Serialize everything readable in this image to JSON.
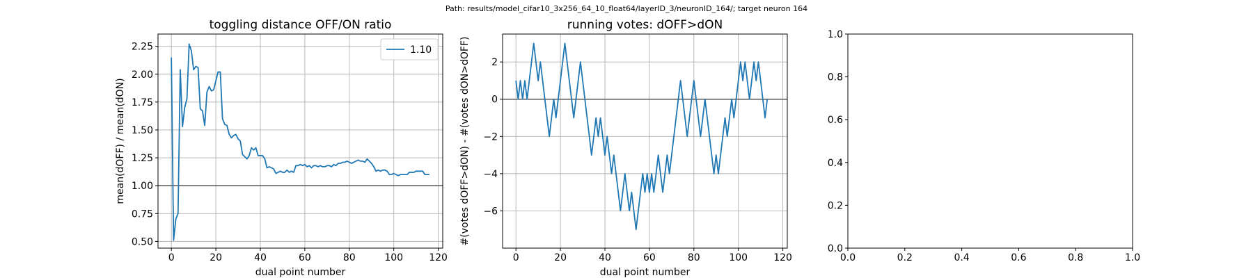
{
  "suptitle": "Path: results/model_cifar10_3x256_64_10_float64/layerID_3/neuronID_164/; target neuron 164",
  "colors": {
    "series": "#1f77b4",
    "grid": "#b0b0b0",
    "refline": "#555555"
  },
  "chart_data": [
    {
      "type": "line",
      "title": "toggling distance OFF/ON ratio",
      "xlabel": "dual point number",
      "ylabel": "mean(dOFF) / mean(dON)",
      "xlim": [
        -6,
        122
      ],
      "ylim": [
        0.44,
        2.36
      ],
      "xticks": [
        0,
        20,
        40,
        60,
        80,
        100,
        120
      ],
      "yticks": [
        0.5,
        0.75,
        1.0,
        1.25,
        1.5,
        1.75,
        2.0,
        2.25
      ],
      "ytick_labels": [
        "0.50",
        "0.75",
        "1.00",
        "1.25",
        "1.50",
        "1.75",
        "2.00",
        "2.25"
      ],
      "grid": true,
      "hline": 1.0,
      "legend": {
        "position": "top-right",
        "label": "1.10"
      },
      "series": [
        {
          "name": "1.10",
          "y": [
            2.15,
            0.51,
            0.7,
            0.75,
            2.04,
            1.53,
            1.7,
            1.78,
            2.27,
            2.21,
            2.04,
            2.07,
            2.06,
            1.69,
            1.67,
            1.54,
            1.84,
            1.89,
            1.85,
            1.86,
            1.94,
            2.02,
            2.02,
            1.6,
            1.55,
            1.54,
            1.46,
            1.43,
            1.45,
            1.46,
            1.42,
            1.4,
            1.28,
            1.26,
            1.24,
            1.27,
            1.34,
            1.32,
            1.34,
            1.27,
            1.27,
            1.27,
            1.24,
            1.16,
            1.17,
            1.16,
            1.15,
            1.11,
            1.12,
            1.13,
            1.12,
            1.12,
            1.14,
            1.12,
            1.13,
            1.12,
            1.18,
            1.18,
            1.19,
            1.18,
            1.19,
            1.17,
            1.18,
            1.16,
            1.18,
            1.18,
            1.17,
            1.18,
            1.17,
            1.17,
            1.18,
            1.18,
            1.17,
            1.19,
            1.18,
            1.2,
            1.2,
            1.21,
            1.21,
            1.22,
            1.21,
            1.2,
            1.21,
            1.22,
            1.23,
            1.22,
            1.22,
            1.21,
            1.24,
            1.22,
            1.2,
            1.17,
            1.13,
            1.14,
            1.13,
            1.14,
            1.14,
            1.13,
            1.1,
            1.1,
            1.11,
            1.1,
            1.09,
            1.1,
            1.1,
            1.1,
            1.1,
            1.12,
            1.12,
            1.12,
            1.13,
            1.13,
            1.13,
            1.13,
            1.1,
            1.1,
            1.1
          ]
        }
      ]
    },
    {
      "type": "line",
      "title": "running votes: dOFF>dON",
      "xlabel": "dual point number",
      "ylabel": "#(votes dOFF>dON) - #(votes dON>dOFF)",
      "xlim": [
        -6,
        122
      ],
      "ylim": [
        -8,
        3.5
      ],
      "xticks": [
        0,
        20,
        40,
        60,
        80,
        100,
        120
      ],
      "yticks": [
        -6,
        -4,
        -2,
        0,
        2
      ],
      "ytick_labels": [
        "−6",
        "−4",
        "−2",
        "0",
        "2"
      ],
      "grid": true,
      "hline": 0,
      "series": [
        {
          "y": [
            1,
            0,
            1,
            0,
            1,
            0,
            1,
            2,
            3,
            2,
            1,
            2,
            1,
            0,
            -1,
            -2,
            -1,
            0,
            -1,
            0,
            1,
            2,
            3,
            2,
            1,
            0,
            -1,
            0,
            1,
            2,
            1,
            0,
            -1,
            -2,
            -3,
            -2,
            -1,
            -2,
            -1,
            -2,
            -3,
            -2,
            -3,
            -4,
            -3,
            -4,
            -5,
            -6,
            -5,
            -4,
            -5,
            -6,
            -5,
            -6,
            -7,
            -6,
            -5,
            -4,
            -5,
            -4,
            -5,
            -4,
            -5,
            -4,
            -3,
            -4,
            -5,
            -4,
            -3,
            -4,
            -3,
            -2,
            -1,
            0,
            1,
            0,
            -1,
            -2,
            -1,
            0,
            1,
            0,
            -1,
            -2,
            -1,
            0,
            -1,
            -2,
            -3,
            -4,
            -3,
            -4,
            -3,
            -2,
            -1,
            -2,
            -1,
            0,
            -1,
            0,
            1,
            2,
            1,
            2,
            1,
            0,
            1,
            2,
            1,
            2,
            1,
            0,
            -1,
            0
          ]
        }
      ]
    },
    {
      "type": "line",
      "title": "",
      "xlabel": "",
      "ylabel": "",
      "xlim": [
        0,
        1
      ],
      "ylim": [
        0,
        1
      ],
      "xticks": [
        0,
        0.2,
        0.4,
        0.6,
        0.8,
        1.0
      ],
      "xtick_labels": [
        "0.0",
        "0.2",
        "0.4",
        "0.6",
        "0.8",
        "1.0"
      ],
      "yticks": [
        0,
        0.2,
        0.4,
        0.6,
        0.8,
        1.0
      ],
      "ytick_labels": [
        "0.0",
        "0.2",
        "0.4",
        "0.6",
        "0.8",
        "1.0"
      ],
      "grid": false,
      "series": []
    }
  ]
}
